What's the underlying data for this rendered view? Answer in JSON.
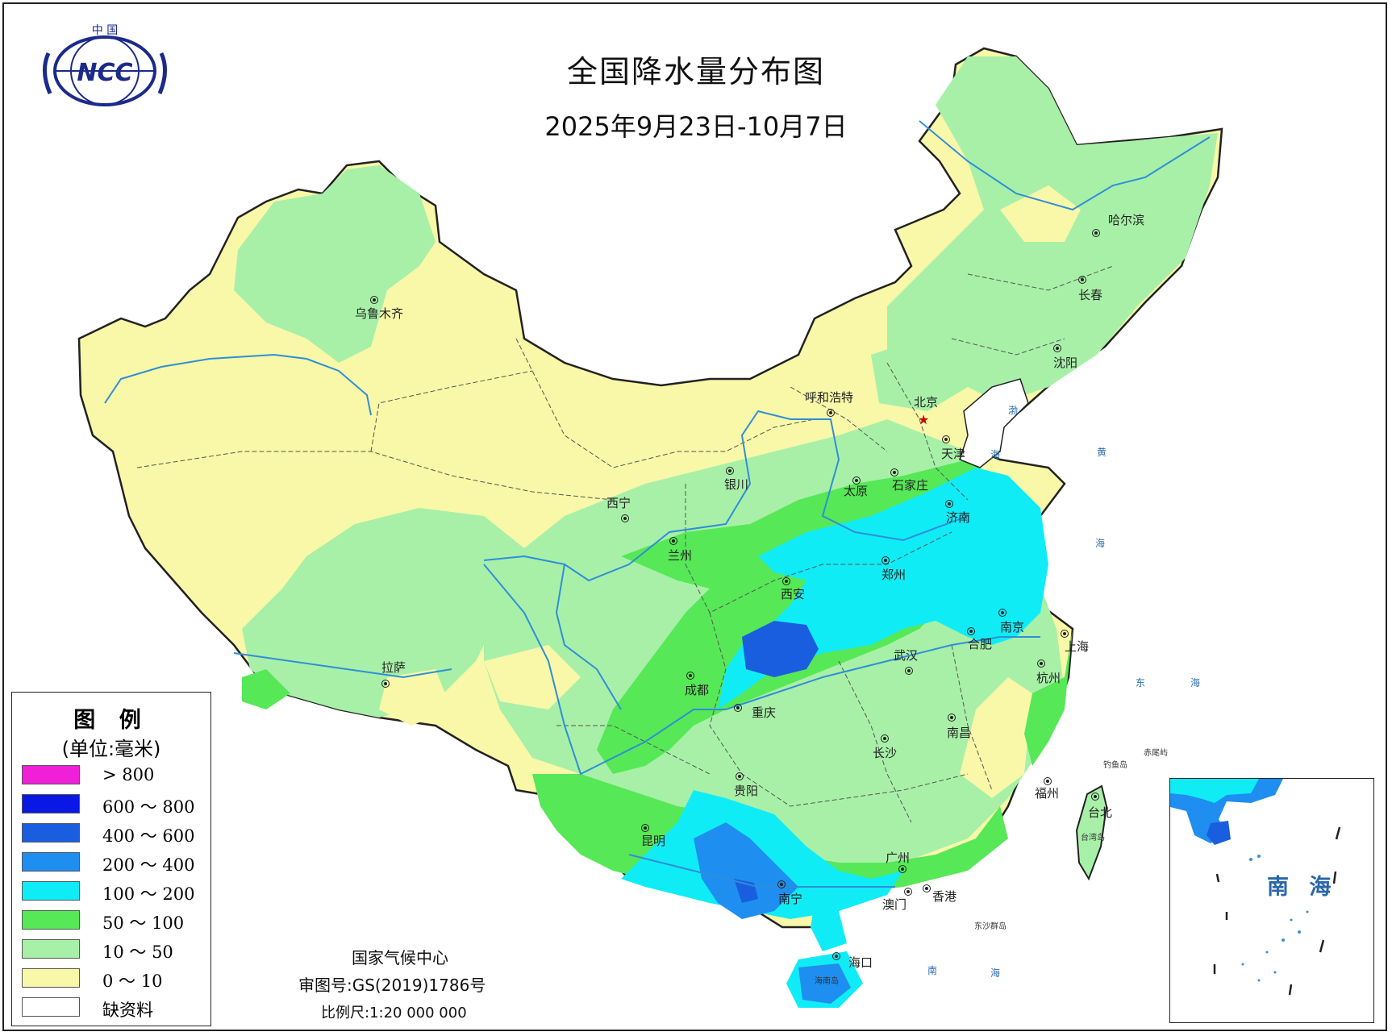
{
  "header": {
    "title": "全国降水量分布图",
    "date_range": "2025年9月23日-10月7日",
    "logo_top_text": "中 国",
    "logo_text": "NCC"
  },
  "legend": {
    "title": "图 例",
    "unit": "(单位:毫米)",
    "items": [
      {
        "label": "> 800",
        "color": "#f020d8"
      },
      {
        "label": "600 ～ 800",
        "color": "#0a18e6"
      },
      {
        "label": "400 ～ 600",
        "color": "#1a5ee0"
      },
      {
        "label": "200 ～ 400",
        "color": "#1e8ef0"
      },
      {
        "label": "100 ～ 200",
        "color": "#10ecf6"
      },
      {
        "label": "50 ～ 100",
        "color": "#56e856"
      },
      {
        "label": "10 ～ 50",
        "color": "#a8f0a8"
      },
      {
        "label": "0 ～ 10",
        "color": "#f8f8a8"
      },
      {
        "label": "缺资料",
        "color": "#ffffff"
      }
    ]
  },
  "cities": [
    {
      "name": "乌鲁木齐"
    },
    {
      "name": "拉萨"
    },
    {
      "name": "西宁"
    },
    {
      "name": "兰州"
    },
    {
      "name": "银川"
    },
    {
      "name": "呼和浩特"
    },
    {
      "name": "北京"
    },
    {
      "name": "天津"
    },
    {
      "name": "石家庄"
    },
    {
      "name": "太原"
    },
    {
      "name": "济南"
    },
    {
      "name": "郑州"
    },
    {
      "name": "西安"
    },
    {
      "name": "成都"
    },
    {
      "name": "重庆"
    },
    {
      "name": "武汉"
    },
    {
      "name": "合肥"
    },
    {
      "name": "南京"
    },
    {
      "name": "上海"
    },
    {
      "name": "杭州"
    },
    {
      "name": "南昌"
    },
    {
      "name": "长沙"
    },
    {
      "name": "贵阳"
    },
    {
      "name": "昆明"
    },
    {
      "name": "南宁"
    },
    {
      "name": "广州"
    },
    {
      "name": "香港"
    },
    {
      "name": "澳门"
    },
    {
      "name": "福州"
    },
    {
      "name": "台北"
    },
    {
      "name": "海口"
    },
    {
      "name": "哈尔滨"
    },
    {
      "name": "长春"
    },
    {
      "name": "沈阳"
    }
  ],
  "seas": {
    "bohai": "渤",
    "bohai2": "海",
    "huanghai": "黄",
    "huanghai2": "海",
    "donghai": "东",
    "donghai2": "海",
    "nanhai": "南",
    "nanhai2": "海"
  },
  "islands": {
    "diaoyu": "钓鱼岛",
    "chiwei": "赤尾屿",
    "taiwan": "台湾岛",
    "dongsha": "东沙群岛",
    "hainan": "海南岛"
  },
  "inset": {
    "label": "南 海"
  },
  "footer": {
    "org": "国家气候中心",
    "map_no": "审图号:GS(2019)1786号",
    "scale": "比例尺:1:20 000 000"
  },
  "colors": {
    "dry": "#f8f8a8",
    "light": "#a8f0a8",
    "moderate": "#56e856",
    "heavy": "#10ecf6",
    "very_heavy": "#1e8ef0",
    "extreme": "#1a5ee0",
    "border": "#222222",
    "river": "#2f8ed8"
  }
}
